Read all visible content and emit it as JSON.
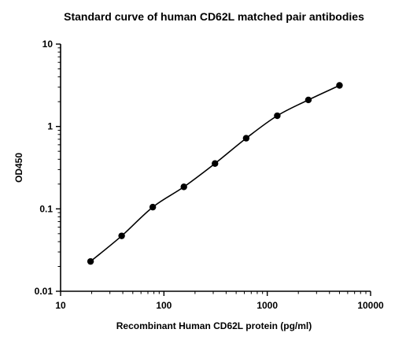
{
  "chart_data": {
    "type": "scatter",
    "title": "Standard curve of human CD62L matched pair antibodies",
    "xlabel": "Recombinant Human CD62L protein (pg/ml)",
    "ylabel": "OD450",
    "xscale": "log",
    "yscale": "log",
    "xlim": [
      10,
      10000
    ],
    "ylim": [
      0.01,
      10
    ],
    "x_ticks": [
      10,
      100,
      1000,
      10000
    ],
    "x_tick_labels": [
      "10",
      "100",
      "1000",
      "10000"
    ],
    "y_ticks": [
      0.01,
      0.1,
      1,
      10
    ],
    "y_tick_labels": [
      "0.01",
      "0.1",
      "1",
      "10"
    ],
    "grid": false,
    "legend": "none",
    "series": [
      {
        "x": [
          19.5,
          39,
          78,
          156,
          312,
          625,
          1250,
          2500,
          5000
        ],
        "y": [
          0.023,
          0.047,
          0.105,
          0.185,
          0.355,
          0.72,
          1.35,
          2.1,
          3.15
        ],
        "marker": "filled-circle",
        "fit_curve": true,
        "color": "#000000"
      }
    ]
  }
}
